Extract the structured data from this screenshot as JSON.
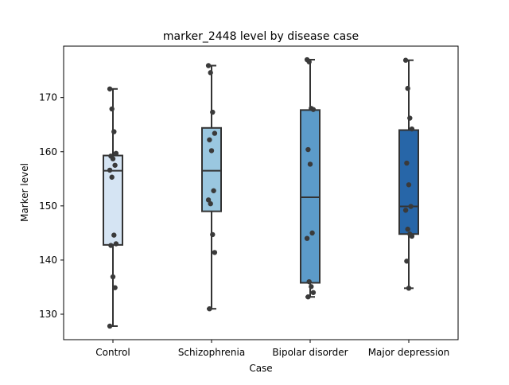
{
  "chart_data": {
    "type": "box",
    "title": "marker_2448 level by disease case",
    "xlabel": "Case",
    "ylabel": "Marker level",
    "categories": [
      "Control",
      "Schizophrenia",
      "Bipolar disorder",
      "Major depression"
    ],
    "ylim": [
      125.3,
      179.5
    ],
    "yticks": [
      130,
      140,
      150,
      160,
      170
    ],
    "grid": false,
    "colors": [
      "#d5e4f3",
      "#9ac7e0",
      "#5c9bc9",
      "#2766a8"
    ],
    "boxes": [
      {
        "min": 127.8,
        "q1": 142.8,
        "median": 156.5,
        "q3": 159.3,
        "max": 171.6
      },
      {
        "min": 131.0,
        "q1": 149.0,
        "median": 156.5,
        "q3": 164.4,
        "max": 175.9
      },
      {
        "min": 133.2,
        "q1": 135.8,
        "median": 151.6,
        "q3": 167.7,
        "max": 177.0
      },
      {
        "min": 134.8,
        "q1": 144.8,
        "median": 149.9,
        "q3": 164.0,
        "max": 176.9
      }
    ],
    "points": [
      [
        171.6,
        167.9,
        163.7,
        159.7,
        159.2,
        158.7,
        157.5,
        156.6,
        155.3,
        144.6,
        143.0,
        142.7,
        136.9,
        134.9,
        127.8
      ],
      [
        175.9,
        174.6,
        167.3,
        163.4,
        162.2,
        160.2,
        152.8,
        151.1,
        150.4,
        144.7,
        141.4,
        131.0
      ],
      [
        177.0,
        176.6,
        168.0,
        167.8,
        160.4,
        157.7,
        145.0,
        144.0,
        136.0,
        135.1,
        134.0,
        133.2
      ],
      [
        176.9,
        171.7,
        166.2,
        164.2,
        157.9,
        153.9,
        149.9,
        149.2,
        145.7,
        144.8,
        144.4,
        139.8,
        134.8
      ]
    ]
  }
}
